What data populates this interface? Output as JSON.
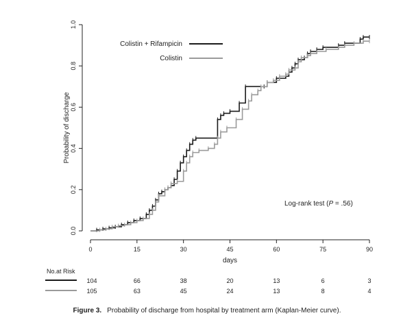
{
  "chart_data": {
    "type": "line",
    "subtype": "step (Kaplan-Meier)",
    "xlabel": "days",
    "ylabel": "Probability of discharge",
    "xlim": [
      0,
      90
    ],
    "ylim": [
      0,
      1
    ],
    "xticks": [
      "0",
      "15",
      "30",
      "45",
      "60",
      "75",
      "90"
    ],
    "yticks": [
      "0.0",
      "0.2",
      "0.4",
      "0.6",
      "0.8",
      "1.0"
    ],
    "grid": false,
    "legend_position": "top-center",
    "annotation": {
      "prefix": "Log-rank test (",
      "p_label": "P",
      "suffix": " = .56)"
    },
    "series": [
      {
        "name": "Colistin + Rifampicin",
        "color": "#1a1a1a",
        "points": [
          [
            0,
            0
          ],
          [
            2,
            0.005
          ],
          [
            4,
            0.01
          ],
          [
            6,
            0.015
          ],
          [
            8,
            0.02
          ],
          [
            10,
            0.03
          ],
          [
            12,
            0.04
          ],
          [
            14,
            0.05
          ],
          [
            16,
            0.06
          ],
          [
            18,
            0.08
          ],
          [
            19,
            0.1
          ],
          [
            20,
            0.12
          ],
          [
            21,
            0.15
          ],
          [
            22,
            0.18
          ],
          [
            23,
            0.19
          ],
          [
            24,
            0.2
          ],
          [
            25,
            0.21
          ],
          [
            26,
            0.22
          ],
          [
            27,
            0.25
          ],
          [
            28,
            0.29
          ],
          [
            29,
            0.33
          ],
          [
            30,
            0.36
          ],
          [
            31,
            0.39
          ],
          [
            32,
            0.42
          ],
          [
            33,
            0.44
          ],
          [
            34,
            0.45
          ],
          [
            41,
            0.54
          ],
          [
            42,
            0.56
          ],
          [
            43,
            0.57
          ],
          [
            45,
            0.58
          ],
          [
            48,
            0.62
          ],
          [
            50,
            0.7
          ],
          [
            56,
            0.7
          ],
          [
            57,
            0.72
          ],
          [
            60,
            0.74
          ],
          [
            63,
            0.75
          ],
          [
            64,
            0.77
          ],
          [
            65,
            0.79
          ],
          [
            66,
            0.81
          ],
          [
            67,
            0.83
          ],
          [
            69,
            0.84
          ],
          [
            70,
            0.86
          ],
          [
            71,
            0.87
          ],
          [
            73,
            0.88
          ],
          [
            75,
            0.89
          ],
          [
            80,
            0.9
          ],
          [
            82,
            0.91
          ],
          [
            87,
            0.93
          ],
          [
            88,
            0.94
          ],
          [
            90,
            0.94
          ]
        ]
      },
      {
        "name": "Colistin",
        "color": "#9a9a9a",
        "points": [
          [
            0,
            0
          ],
          [
            3,
            0.005
          ],
          [
            5,
            0.01
          ],
          [
            7,
            0.02
          ],
          [
            9,
            0.025
          ],
          [
            11,
            0.03
          ],
          [
            13,
            0.04
          ],
          [
            15,
            0.05
          ],
          [
            17,
            0.06
          ],
          [
            19,
            0.08
          ],
          [
            20,
            0.1
          ],
          [
            21,
            0.14
          ],
          [
            22,
            0.17
          ],
          [
            24,
            0.2
          ],
          [
            25,
            0.21
          ],
          [
            26,
            0.23
          ],
          [
            28,
            0.24
          ],
          [
            30,
            0.29
          ],
          [
            31,
            0.33
          ],
          [
            32,
            0.36
          ],
          [
            33,
            0.38
          ],
          [
            35,
            0.39
          ],
          [
            38,
            0.4
          ],
          [
            40,
            0.42
          ],
          [
            41,
            0.45
          ],
          [
            42,
            0.48
          ],
          [
            44,
            0.5
          ],
          [
            47,
            0.54
          ],
          [
            49,
            0.59
          ],
          [
            51,
            0.63
          ],
          [
            52,
            0.66
          ],
          [
            54,
            0.68
          ],
          [
            55,
            0.7
          ],
          [
            57,
            0.72
          ],
          [
            59,
            0.73
          ],
          [
            61,
            0.75
          ],
          [
            63,
            0.76
          ],
          [
            64,
            0.78
          ],
          [
            66,
            0.79
          ],
          [
            67,
            0.82
          ],
          [
            68,
            0.84
          ],
          [
            70,
            0.85
          ],
          [
            71,
            0.86
          ],
          [
            73,
            0.87
          ],
          [
            76,
            0.88
          ],
          [
            80,
            0.89
          ],
          [
            82,
            0.9
          ],
          [
            85,
            0.91
          ],
          [
            88,
            0.92
          ],
          [
            90,
            0.92
          ]
        ]
      }
    ]
  },
  "risk_table": {
    "title": "No.at Risk",
    "rows": [
      {
        "series": "Colistin + Rifampicin",
        "color": "#1a1a1a",
        "values": [
          "104",
          "66",
          "38",
          "20",
          "13",
          "6",
          "3"
        ]
      },
      {
        "series": "Colistin",
        "color": "#9a9a9a",
        "values": [
          "105",
          "63",
          "45",
          "24",
          "13",
          "8",
          "4"
        ]
      }
    ]
  },
  "caption": {
    "label": "Figure 3.",
    "text": "Probability of discharge from hospital by treatment arm (Kaplan-Meier curve)."
  }
}
